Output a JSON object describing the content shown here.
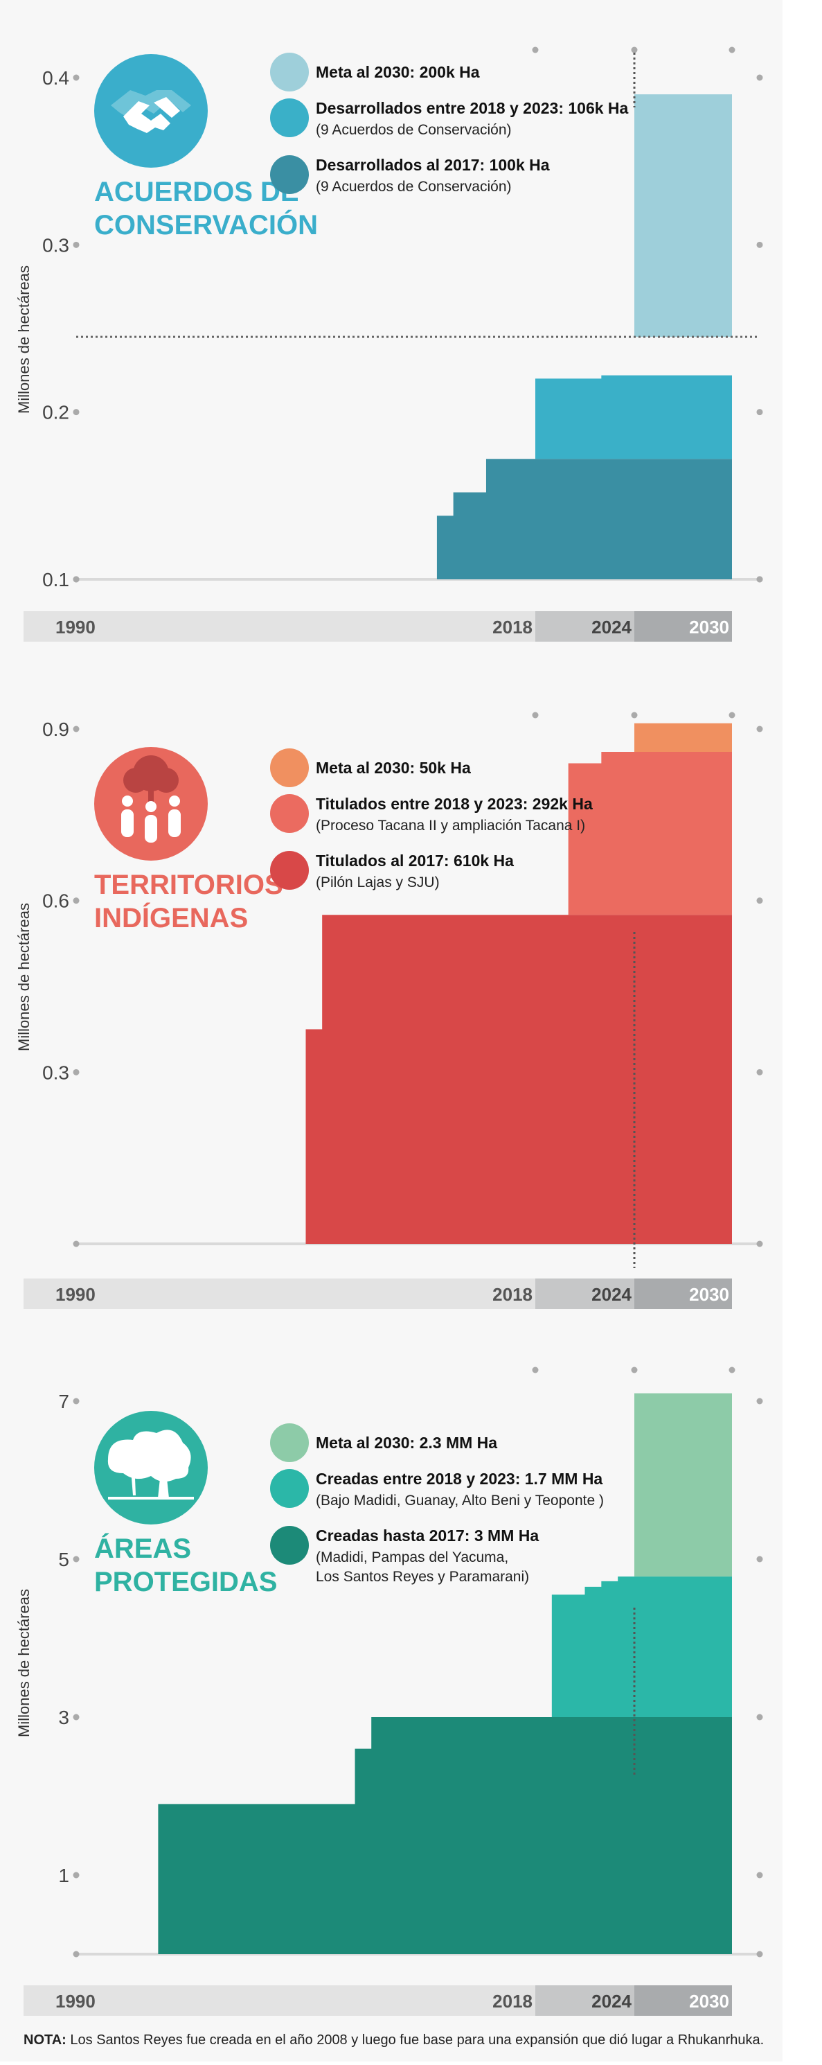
{
  "y_axis_title": "Millones de hectáreas",
  "timeline": {
    "start": "1990",
    "y2018": "2018",
    "y2024": "2024",
    "y2030": "2030"
  },
  "note": {
    "label": "NOTA:",
    "text": " Los Santos Reyes fue creada en el año 2008 y luego fue base para una expansión que dió lugar a Rhukanrhuka."
  },
  "chart_data": [
    {
      "type": "area",
      "title_lines": [
        "ACUERDOS DE",
        "CONSERVACIÓN"
      ],
      "ylabel": "Millones de hectáreas",
      "ylim": [
        0.1,
        0.4
      ],
      "y_ticks": [
        0.4,
        0.3,
        0.2,
        0.1
      ],
      "x_ticks": [
        "1990",
        "2018",
        "2024",
        "2030"
      ],
      "icon": "handshake-icon",
      "colors": {
        "title": "#3AAECB",
        "circle": "#3AAECB",
        "goal": "#9ECFDA",
        "dev": "#3AB0C8",
        "base": "#3A8FA3"
      },
      "legend": [
        {
          "title": "Meta al 2030: 200k Ha",
          "sub": ""
        },
        {
          "title": "Desarrollados entre 2018 y 2023: 106k Ha",
          "sub": "(9 Acuerdos de Conservación)"
        },
        {
          "title": "Desarrollados al 2017: 100k Ha",
          "sub": "(9 Acuerdos de Conservación)"
        }
      ],
      "series": [
        {
          "name": "Desarrollados al 2017: 100k Ha",
          "x": [
            2012,
            2013,
            2015,
            2030
          ],
          "y": [
            0.138,
            0.152,
            0.172,
            0.172
          ]
        },
        {
          "name": "Desarrollados entre 2018 y 2023: 106k Ha",
          "x": [
            2018,
            2021,
            2022,
            2030
          ],
          "y": [
            0.22,
            0.22,
            0.222,
            0.245
          ]
        },
        {
          "name": "Meta al 2030: 200k Ha",
          "x": [
            2024,
            2030
          ],
          "y": [
            0.39,
            0.39
          ]
        }
      ],
      "reference_line": 0.245
    },
    {
      "type": "area",
      "title_lines": [
        "TERRITORIOS",
        "INDÍGENAS"
      ],
      "ylabel": "Millones de hectáreas",
      "ylim": [
        0,
        0.9
      ],
      "y_ticks": [
        0.9,
        0.6,
        0.3
      ],
      "x_ticks": [
        "1990",
        "2018",
        "2024",
        "2030"
      ],
      "icon": "indigenous-people-icon",
      "colors": {
        "title": "#E8685D",
        "circle": "#E8685D",
        "goal": "#F09060",
        "dev": "#EB6B60",
        "base": "#D84848"
      },
      "legend": [
        {
          "title": "Meta al 2030: 50k Ha",
          "sub": ""
        },
        {
          "title": "Titulados entre 2018 y 2023: 292k Ha",
          "sub": "(Proceso Tacana II y ampliación Tacana I)"
        },
        {
          "title": "Titulados al 2017: 610k Ha",
          "sub": "(Pilón Lajas y SJU)"
        }
      ],
      "series": [
        {
          "name": "Titulados al 2017: 610k Ha",
          "x": [
            2004,
            2005,
            2030
          ],
          "y": [
            0.375,
            0.575,
            0.575
          ]
        },
        {
          "name": "Titulados entre 2018 y 2023: 292k Ha",
          "x": [
            2020,
            2022,
            2030
          ],
          "y": [
            0.84,
            0.86,
            0.86
          ]
        },
        {
          "name": "Meta al 2030: 50k Ha",
          "x": [
            2024,
            2030
          ],
          "y": [
            0.91,
            0.91
          ]
        }
      ]
    },
    {
      "type": "area",
      "title_lines": [
        "ÁREAS",
        "PROTEGIDAS"
      ],
      "ylabel": "Millones de hectáreas",
      "ylim": [
        0,
        7.5
      ],
      "y_ticks": [
        7,
        5,
        3,
        1
      ],
      "x_ticks": [
        "1990",
        "2018",
        "2024",
        "2030"
      ],
      "icon": "trees-icon",
      "colors": {
        "title": "#2FB2A2",
        "circle": "#2FB2A2",
        "goal": "#8DCBA8",
        "dev": "#2BB7A8",
        "base": "#1C8A78"
      },
      "legend": [
        {
          "title": "Meta al 2030: 2.3 MM Ha",
          "sub": ""
        },
        {
          "title": "Creadas entre 2018 y 2023: 1.7 MM Ha",
          "sub": "(Bajo Madidi, Guanay, Alto Beni y Teoponte )"
        },
        {
          "title": "Creadas hasta 2017: 3 MM Ha",
          "sub": "(Madidi, Pampas del Yacuma,",
          "sub2": "Los Santos Reyes y Paramarani)"
        }
      ],
      "series": [
        {
          "name": "Creadas hasta 2017: 3 MM Ha",
          "x": [
            1995,
            2007,
            2008,
            2030
          ],
          "y": [
            1.9,
            2.6,
            3.0,
            3.0
          ]
        },
        {
          "name": "Creadas entre 2018 y 2023: 1.7 MM Ha",
          "x": [
            2019,
            2021,
            2022,
            2023,
            2030
          ],
          "y": [
            4.55,
            4.65,
            4.72,
            4.78,
            4.78
          ]
        },
        {
          "name": "Meta al 2030: 2.3 MM Ha",
          "x": [
            2024,
            2030
          ],
          "y": [
            7.1,
            7.1
          ]
        }
      ]
    }
  ]
}
